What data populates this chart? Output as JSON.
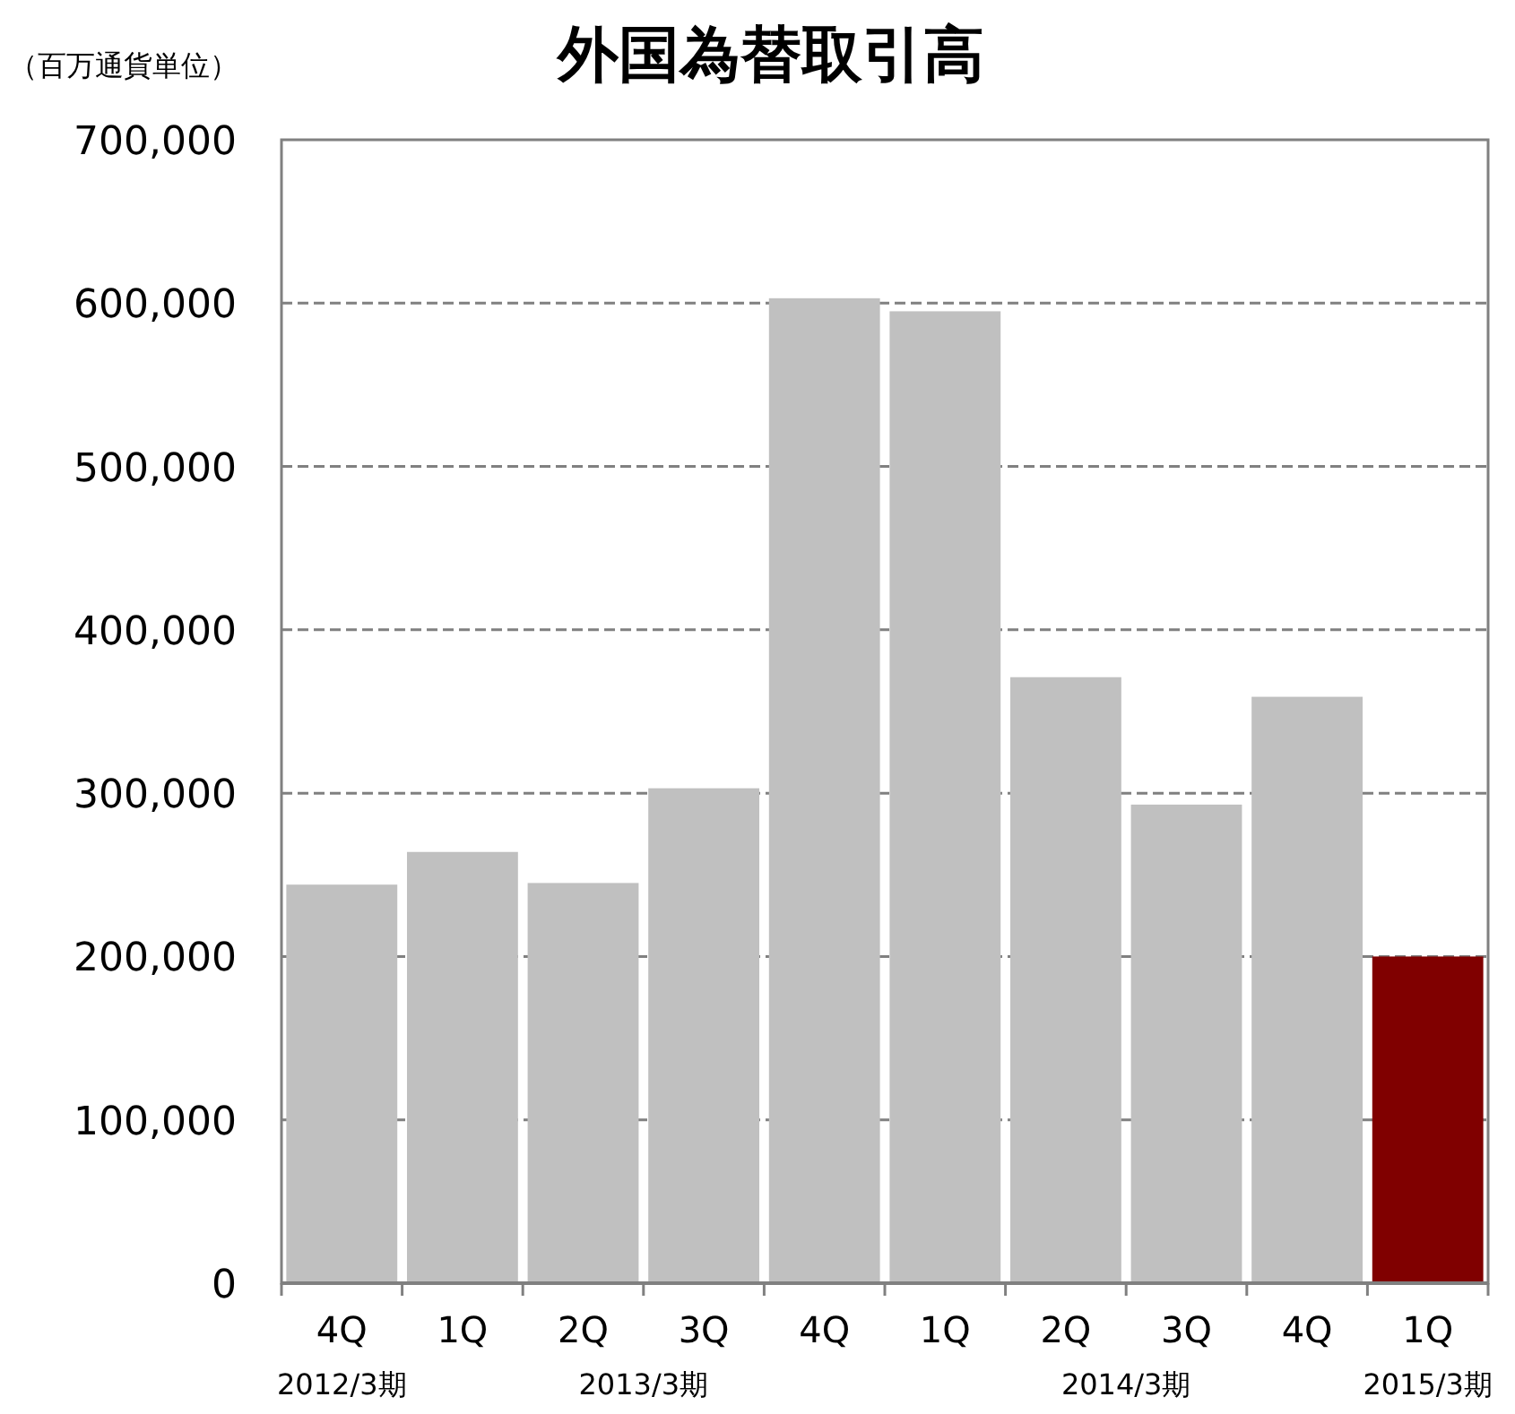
{
  "chart_data": {
    "type": "bar",
    "title": "外国為替取引高",
    "ylabel": "（百万通貨単位）",
    "categories": [
      "4Q",
      "1Q",
      "2Q",
      "3Q",
      "4Q",
      "1Q",
      "2Q",
      "3Q",
      "4Q",
      "1Q"
    ],
    "values": [
      244000,
      264000,
      245000,
      303000,
      603000,
      595000,
      371000,
      293000,
      359000,
      200000
    ],
    "colors": [
      "#c0c0c0",
      "#c0c0c0",
      "#c0c0c0",
      "#c0c0c0",
      "#c0c0c0",
      "#c0c0c0",
      "#c0c0c0",
      "#c0c0c0",
      "#c0c0c0",
      "#800000"
    ],
    "ylim": [
      0,
      700000
    ],
    "yticks": [
      {
        "value": 0,
        "label": "0"
      },
      {
        "value": 100000,
        "label": "100,000"
      },
      {
        "value": 200000,
        "label": "200,000"
      },
      {
        "value": 300000,
        "label": "300,000"
      },
      {
        "value": 400000,
        "label": "400,000"
      },
      {
        "value": 500000,
        "label": "500,000"
      },
      {
        "value": 600000,
        "label": "600,000"
      },
      {
        "value": 700000,
        "label": "700,000"
      }
    ],
    "grid": "y",
    "annotations": [
      "2012/3期",
      "2013/3期",
      "2014/3期",
      "2015/3期"
    ]
  }
}
